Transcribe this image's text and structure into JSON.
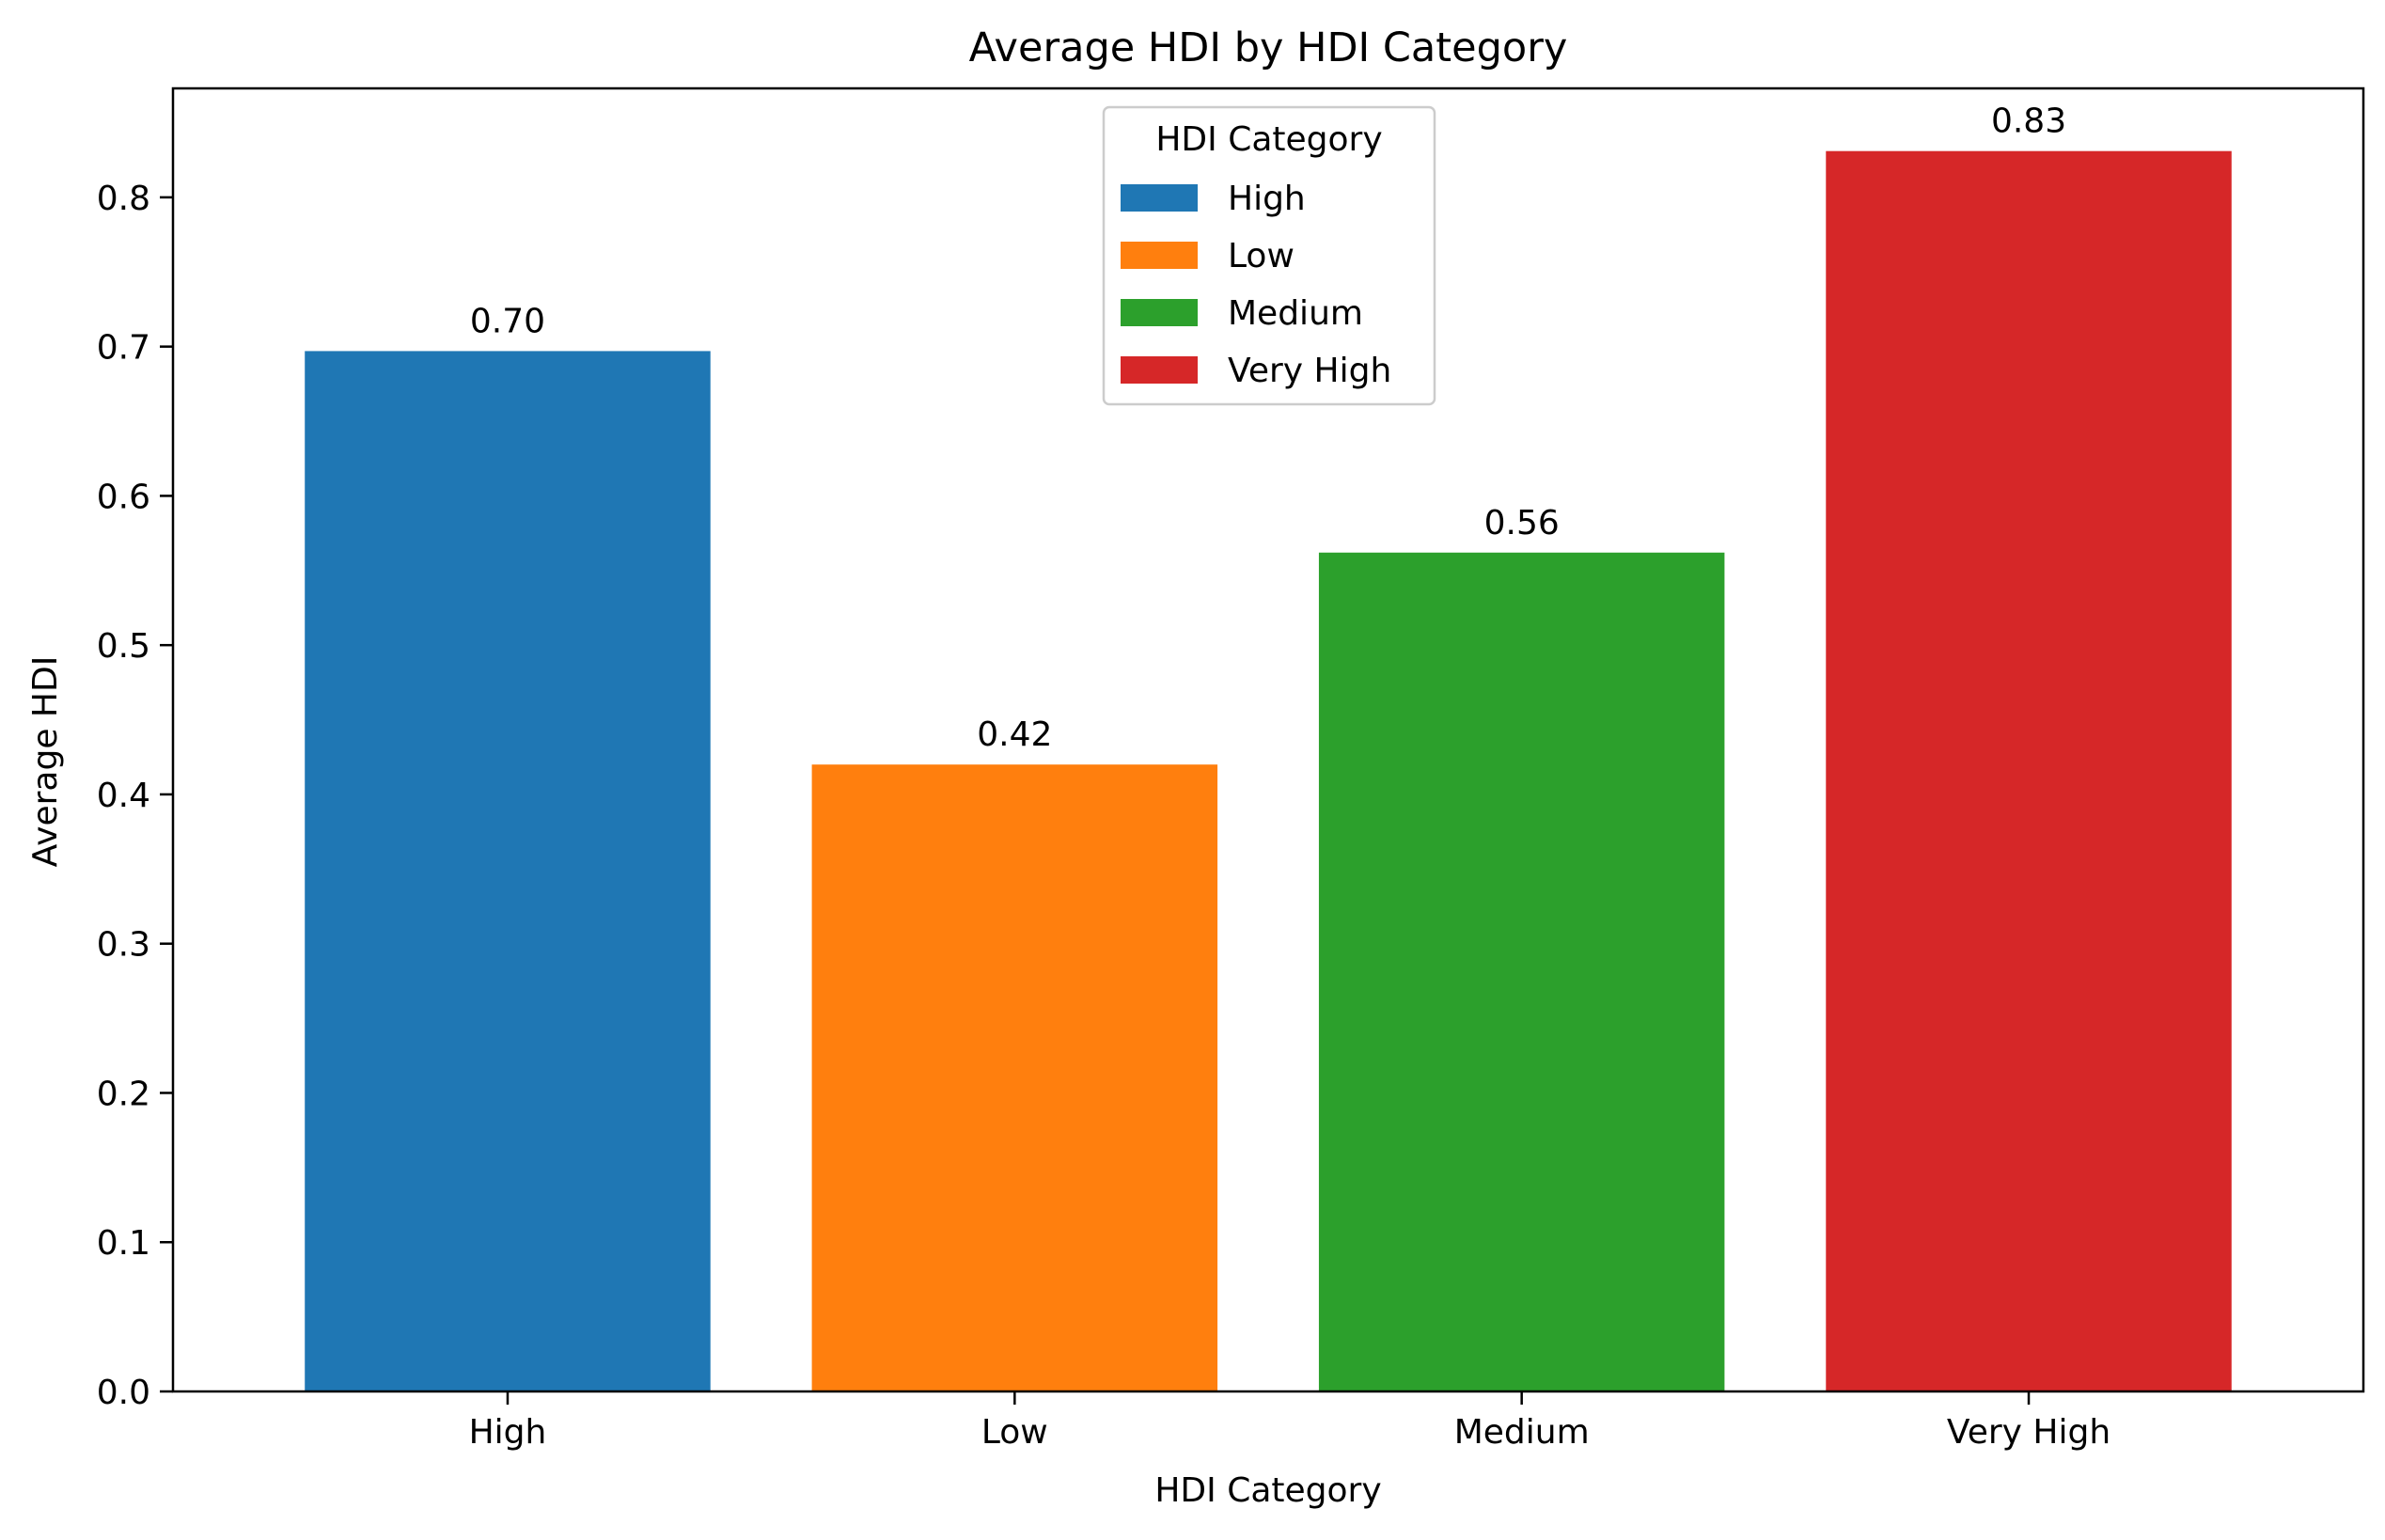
{
  "chart_data": {
    "type": "bar",
    "title": "Average HDI by HDI Category",
    "xlabel": "HDI Category",
    "ylabel": "Average HDI",
    "categories": [
      "High",
      "Low",
      "Medium",
      "Very High"
    ],
    "values": [
      0.697,
      0.42,
      0.562,
      0.831
    ],
    "value_labels": [
      "0.70",
      "0.42",
      "0.56",
      "0.83"
    ],
    "colors": [
      "#1f77b4",
      "#ff7f0e",
      "#2ca02c",
      "#d62728"
    ],
    "ylim": [
      0,
      0.873
    ],
    "yticks": [
      0.0,
      0.1,
      0.2,
      0.3,
      0.4,
      0.5,
      0.6,
      0.7,
      0.8
    ],
    "ytick_labels": [
      "0.0",
      "0.1",
      "0.2",
      "0.3",
      "0.4",
      "0.5",
      "0.6",
      "0.7",
      "0.8"
    ],
    "grid": false,
    "legend": {
      "title": "HDI Category",
      "placement": "upper-center",
      "entries": [
        "High",
        "Low",
        "Medium",
        "Very High"
      ]
    }
  }
}
